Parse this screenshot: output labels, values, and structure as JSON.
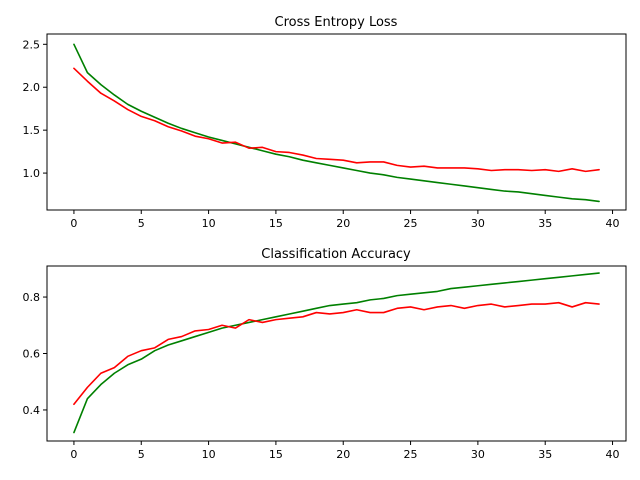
{
  "chart_data": [
    {
      "type": "line",
      "title": "Cross Entropy Loss",
      "xlabel": "",
      "ylabel": "",
      "xlim": [
        -2,
        41
      ],
      "ylim": [
        0.57,
        2.62
      ],
      "xticks": [
        0,
        5,
        10,
        15,
        20,
        25,
        30,
        35,
        40
      ],
      "yticks": [
        1.0,
        1.5,
        2.0,
        2.5
      ],
      "ytick_labels": [
        "1.0",
        "1.5",
        "2.0",
        "2.5"
      ],
      "grid": false,
      "x": [
        0,
        1,
        2,
        3,
        4,
        5,
        6,
        7,
        8,
        9,
        10,
        11,
        12,
        13,
        14,
        15,
        16,
        17,
        18,
        19,
        20,
        21,
        22,
        23,
        24,
        25,
        26,
        27,
        28,
        29,
        30,
        31,
        32,
        33,
        34,
        35,
        36,
        37,
        38,
        39
      ],
      "series": [
        {
          "color": "#008000",
          "values": [
            2.5,
            2.17,
            2.03,
            1.91,
            1.8,
            1.72,
            1.65,
            1.58,
            1.52,
            1.47,
            1.42,
            1.38,
            1.34,
            1.3,
            1.26,
            1.22,
            1.19,
            1.15,
            1.12,
            1.09,
            1.06,
            1.03,
            1.0,
            0.98,
            0.95,
            0.93,
            0.91,
            0.89,
            0.87,
            0.85,
            0.83,
            0.81,
            0.79,
            0.78,
            0.76,
            0.74,
            0.72,
            0.7,
            0.69,
            0.67
          ]
        },
        {
          "color": "#ff0000",
          "values": [
            2.22,
            2.07,
            1.93,
            1.84,
            1.74,
            1.66,
            1.61,
            1.54,
            1.49,
            1.43,
            1.4,
            1.35,
            1.36,
            1.29,
            1.3,
            1.25,
            1.24,
            1.21,
            1.17,
            1.16,
            1.15,
            1.12,
            1.13,
            1.13,
            1.09,
            1.07,
            1.08,
            1.06,
            1.06,
            1.06,
            1.05,
            1.03,
            1.04,
            1.04,
            1.03,
            1.04,
            1.02,
            1.05,
            1.02,
            1.04
          ]
        }
      ]
    },
    {
      "type": "line",
      "title": "Classification Accuracy",
      "xlabel": "",
      "ylabel": "",
      "xlim": [
        -2,
        41
      ],
      "ylim": [
        0.29,
        0.91
      ],
      "xticks": [
        0,
        5,
        10,
        15,
        20,
        25,
        30,
        35,
        40
      ],
      "yticks": [
        0.4,
        0.6,
        0.8
      ],
      "ytick_labels": [
        "0.4",
        "0.6",
        "0.8"
      ],
      "grid": false,
      "x": [
        0,
        1,
        2,
        3,
        4,
        5,
        6,
        7,
        8,
        9,
        10,
        11,
        12,
        13,
        14,
        15,
        16,
        17,
        18,
        19,
        20,
        21,
        22,
        23,
        24,
        25,
        26,
        27,
        28,
        29,
        30,
        31,
        32,
        33,
        34,
        35,
        36,
        37,
        38,
        39
      ],
      "series": [
        {
          "color": "#008000",
          "values": [
            0.32,
            0.44,
            0.49,
            0.53,
            0.56,
            0.58,
            0.61,
            0.63,
            0.645,
            0.66,
            0.675,
            0.69,
            0.7,
            0.71,
            0.72,
            0.73,
            0.74,
            0.75,
            0.76,
            0.77,
            0.775,
            0.78,
            0.79,
            0.795,
            0.805,
            0.81,
            0.815,
            0.82,
            0.83,
            0.835,
            0.84,
            0.845,
            0.85,
            0.855,
            0.86,
            0.865,
            0.87,
            0.875,
            0.88,
            0.885
          ]
        },
        {
          "color": "#ff0000",
          "values": [
            0.42,
            0.48,
            0.53,
            0.55,
            0.59,
            0.61,
            0.62,
            0.65,
            0.66,
            0.68,
            0.685,
            0.7,
            0.69,
            0.72,
            0.71,
            0.72,
            0.725,
            0.73,
            0.745,
            0.74,
            0.745,
            0.755,
            0.745,
            0.745,
            0.76,
            0.765,
            0.755,
            0.765,
            0.77,
            0.76,
            0.77,
            0.775,
            0.765,
            0.77,
            0.775,
            0.775,
            0.78,
            0.765,
            0.78,
            0.775
          ]
        }
      ]
    }
  ]
}
